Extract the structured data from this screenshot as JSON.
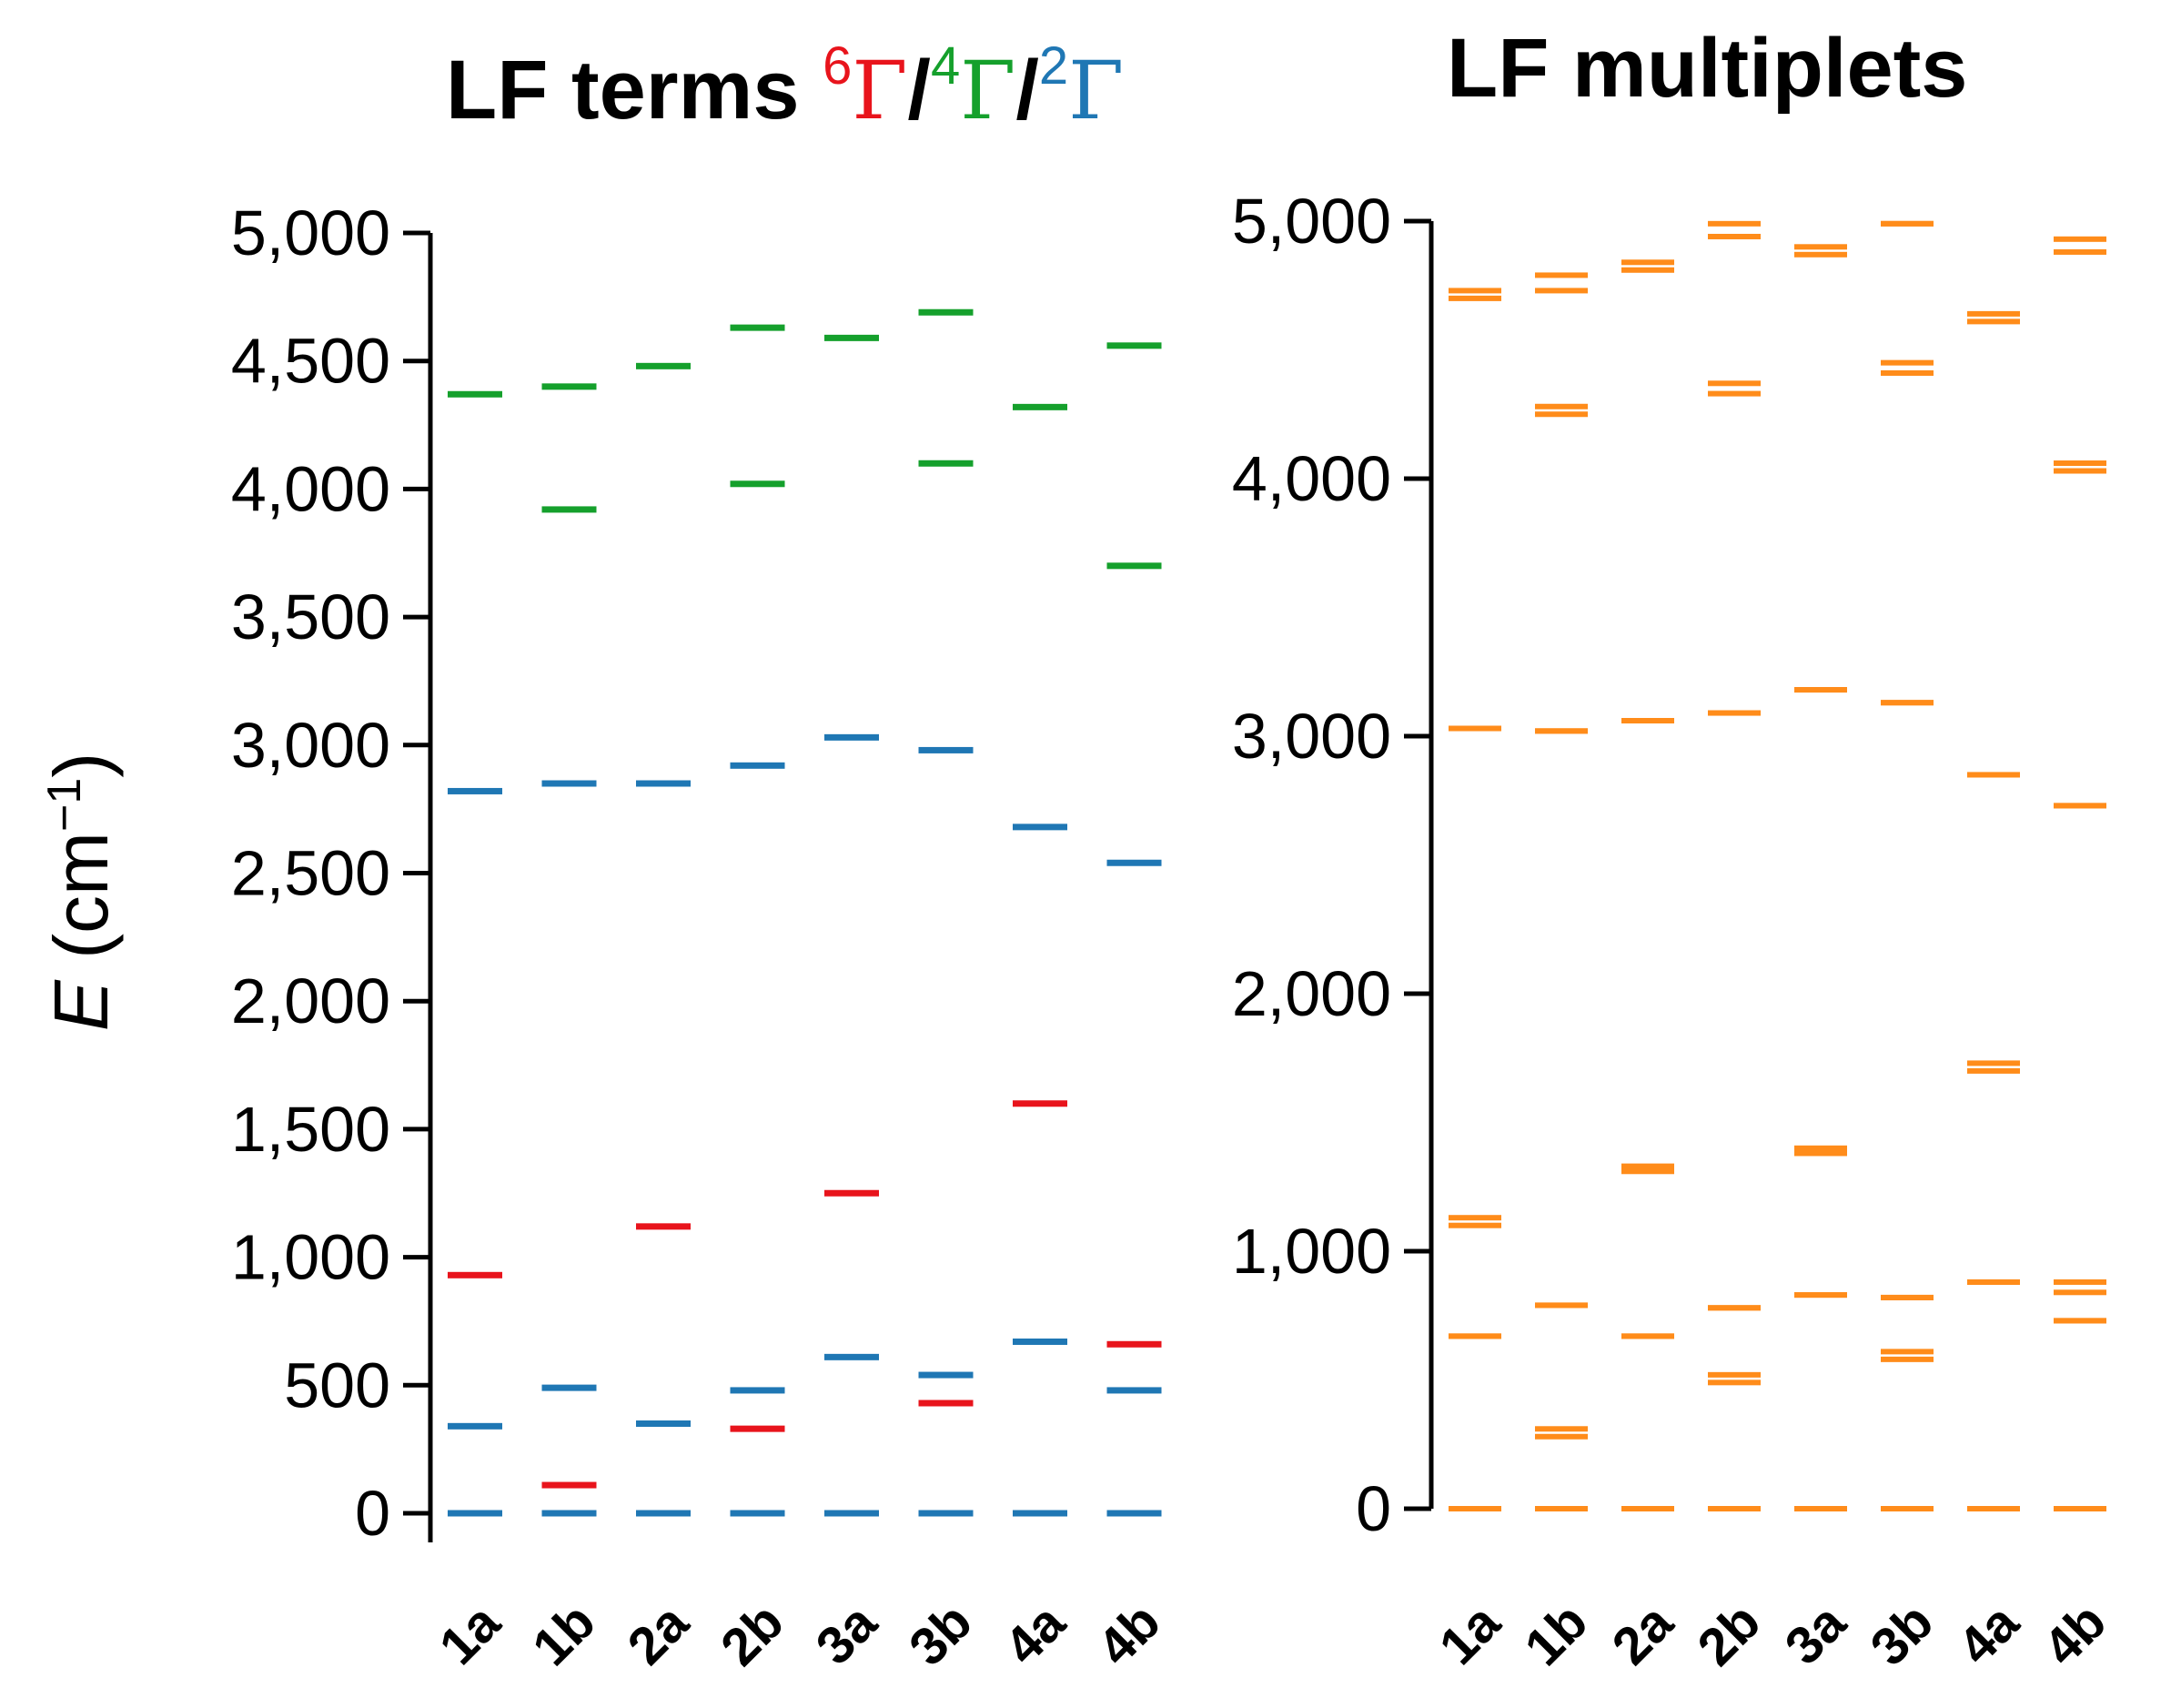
{
  "chart_data": [
    {
      "type": "energy-level",
      "title": "LF terms",
      "title_parts": [
        {
          "sup": "6",
          "text": "Γ",
          "color": "#e8141c"
        },
        {
          "sep": "/",
          "sup": "4",
          "text": "Γ",
          "color": "#15a02c"
        },
        {
          "sep": "/",
          "sup": "2",
          "text": "Γ",
          "color": "#1f77b4"
        }
      ],
      "ylabel": {
        "var": "E",
        "open": " (cm",
        "sup": "−1",
        "close": ")"
      },
      "ylim": [
        0,
        5000
      ],
      "yticks": [
        0,
        500,
        1000,
        1500,
        2000,
        2500,
        3000,
        3500,
        4000,
        4500,
        5000
      ],
      "ytick_labels": [
        "0",
        "500",
        "1,000",
        "1,500",
        "2,000",
        "2,500",
        "3,000",
        "3,500",
        "4,000",
        "4,500",
        "5,000"
      ],
      "categories": [
        "1a",
        "1b",
        "2a",
        "2b",
        "3a",
        "3b",
        "4a",
        "4b"
      ],
      "series": [
        {
          "multiplicity": "6Γ",
          "color": "#e8141c",
          "levels": [
            [
              930
            ],
            [
              110
            ],
            [
              1120
            ],
            [
              330
            ],
            [
              1250
            ],
            [
              430
            ],
            [
              1600
            ],
            [
              660
            ]
          ]
        },
        {
          "multiplicity": "4Γ",
          "color": "#15a02c",
          "levels": [
            [
              4370
            ],
            [
              3920,
              4400
            ],
            [
              4480
            ],
            [
              4020,
              4630
            ],
            [
              4590
            ],
            [
              4100,
              4690
            ],
            [
              4320
            ],
            [
              3700,
              4560
            ]
          ]
        },
        {
          "multiplicity": "2Γ",
          "color": "#1f77b4",
          "levels": [
            [
              0,
              340,
              2820
            ],
            [
              0,
              490,
              2850
            ],
            [
              0,
              350,
              2850
            ],
            [
              0,
              480,
              2920
            ],
            [
              0,
              610,
              3030
            ],
            [
              0,
              540,
              2980
            ],
            [
              0,
              670,
              2680
            ],
            [
              0,
              480,
              2540
            ]
          ]
        }
      ]
    },
    {
      "type": "energy-level",
      "title": "LF multiplets",
      "color": "#ff8c1a",
      "ylim": [
        0,
        5000
      ],
      "yticks": [
        0,
        1000,
        2000,
        3000,
        4000,
        5000
      ],
      "ytick_labels": [
        "0",
        "1,000",
        "2,000",
        "3,000",
        "4,000",
        "5,000"
      ],
      "categories": [
        "1a",
        "1b",
        "2a",
        "2b",
        "3a",
        "3b",
        "4a",
        "4b"
      ],
      "levels": [
        [
          0,
          0,
          670,
          670,
          1100,
          1130,
          3030,
          3030,
          4700,
          4730
        ],
        [
          0,
          0,
          280,
          310,
          790,
          790,
          3020,
          3020,
          4250,
          4280,
          4730,
          4790
        ],
        [
          0,
          0,
          670,
          670,
          1310,
          1330,
          3060,
          3060,
          4810,
          4840
        ],
        [
          0,
          0,
          490,
          520,
          780,
          780,
          3090,
          3090,
          4330,
          4370,
          4940,
          4990
        ],
        [
          0,
          0,
          830,
          830,
          1380,
          1400,
          3180,
          3180,
          4870,
          4900
        ],
        [
          0,
          0,
          580,
          610,
          820,
          820,
          3130,
          3130,
          4410,
          4450,
          4990,
          4990
        ],
        [
          0,
          0,
          880,
          880,
          1700,
          1730,
          2850,
          2850,
          4610,
          4640
        ],
        [
          0,
          0,
          730,
          730,
          840,
          880,
          2730,
          2730,
          4030,
          4060,
          4880,
          4930
        ]
      ]
    }
  ]
}
